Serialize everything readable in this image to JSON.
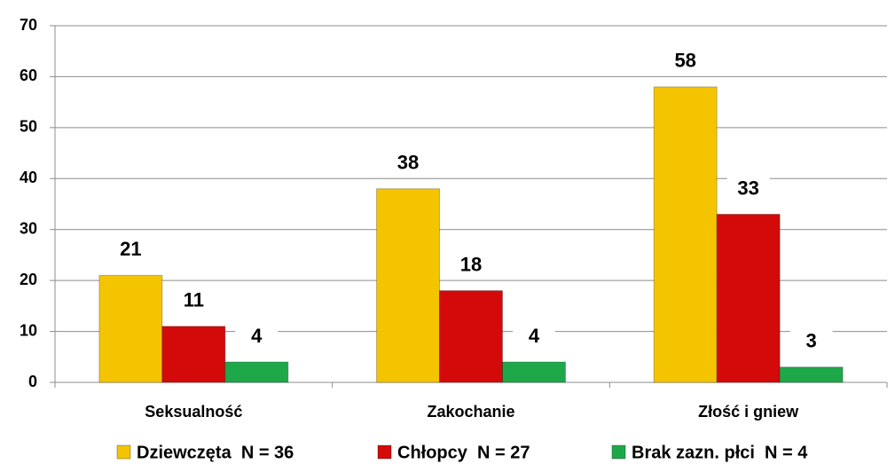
{
  "chart_data": {
    "type": "bar",
    "categories": [
      "Seksualność",
      "Zakochanie",
      "Złość i gniew"
    ],
    "series": [
      {
        "name": "Dziewczęta  N = 36",
        "color": "#f5c400",
        "values": [
          21,
          38,
          58
        ]
      },
      {
        "name": "Chłopcy  N = 27",
        "color": "#d40a0a",
        "values": [
          11,
          18,
          33
        ]
      },
      {
        "name": "Brak zazn. płci  N = 4",
        "color": "#1fa84a",
        "values": [
          4,
          4,
          3
        ]
      }
    ],
    "ylim": [
      0,
      70
    ],
    "yticks": [
      0,
      10,
      20,
      30,
      40,
      50,
      60,
      70
    ],
    "grid": true,
    "legend": "bottom"
  }
}
